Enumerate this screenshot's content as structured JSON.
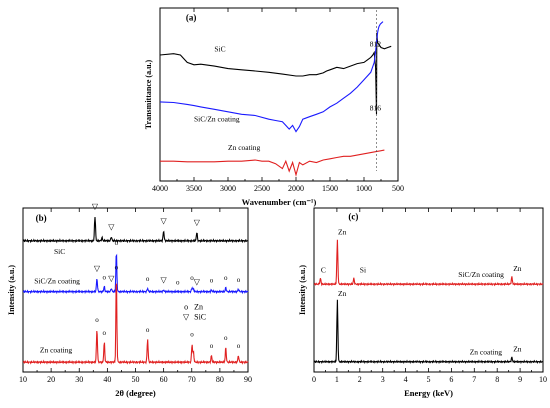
{
  "chart_data": [
    {
      "type": "line",
      "panel": "(a)",
      "xlabel": "Wavenumber (cm⁻¹)",
      "ylabel": "Transmittance (a.u.)",
      "xlim": [
        4000,
        500
      ],
      "x_reversed": true,
      "ticks": [
        4000,
        3500,
        3000,
        2500,
        2000,
        1500,
        1000,
        500
      ],
      "grid": false,
      "series": [
        {
          "name": "SiC",
          "color": "#000000",
          "points": [
            [
              4000,
              0.72
            ],
            [
              3800,
              0.73
            ],
            [
              3700,
              0.72
            ],
            [
              3600,
              0.66
            ],
            [
              3500,
              0.64
            ],
            [
              3400,
              0.645
            ],
            [
              3200,
              0.63
            ],
            [
              3000,
              0.61
            ],
            [
              2800,
              0.6
            ],
            [
              2600,
              0.59
            ],
            [
              2400,
              0.58
            ],
            [
              2200,
              0.565
            ],
            [
              2000,
              0.55
            ],
            [
              1900,
              0.55
            ],
            [
              1800,
              0.56
            ],
            [
              1700,
              0.56
            ],
            [
              1600,
              0.575
            ],
            [
              1550,
              0.59
            ],
            [
              1500,
              0.6
            ],
            [
              1400,
              0.62
            ],
            [
              1300,
              0.61
            ],
            [
              1200,
              0.63
            ],
            [
              1100,
              0.65
            ],
            [
              1000,
              0.66
            ],
            [
              950,
              0.68
            ],
            [
              900,
              0.7
            ],
            [
              870,
              0.72
            ],
            [
              850,
              0.74
            ],
            [
              830,
              0.62
            ],
            [
              816,
              0.24
            ],
            [
              812,
              0.9
            ],
            [
              800,
              0.82
            ],
            [
              750,
              0.78
            ],
            [
              700,
              0.77
            ],
            [
              650,
              0.78
            ],
            [
              600,
              0.79
            ]
          ]
        },
        {
          "name": "SiC/Zn coating",
          "color": "#1a1aff",
          "points": [
            [
              4000,
              0.34
            ],
            [
              3800,
              0.335
            ],
            [
              3600,
              0.32
            ],
            [
              3500,
              0.31
            ],
            [
              3400,
              0.3
            ],
            [
              3200,
              0.28
            ],
            [
              3000,
              0.26
            ],
            [
              2800,
              0.24
            ],
            [
              2600,
              0.23
            ],
            [
              2400,
              0.2
            ],
            [
              2300,
              0.19
            ],
            [
              2200,
              0.18
            ],
            [
              2150,
              0.15
            ],
            [
              2100,
              0.12
            ],
            [
              2050,
              0.15
            ],
            [
              2000,
              0.1
            ],
            [
              1950,
              0.14
            ],
            [
              1900,
              0.2
            ],
            [
              1800,
              0.22
            ],
            [
              1700,
              0.24
            ],
            [
              1600,
              0.26
            ],
            [
              1500,
              0.3
            ],
            [
              1400,
              0.33
            ],
            [
              1300,
              0.37
            ],
            [
              1200,
              0.41
            ],
            [
              1100,
              0.46
            ],
            [
              1000,
              0.52
            ],
            [
              900,
              0.58
            ],
            [
              850,
              0.66
            ],
            [
              830,
              0.75
            ],
            [
              816,
              0.82
            ],
            [
              800,
              0.9
            ],
            [
              790,
              0.93
            ],
            [
              780,
              0.95
            ],
            [
              760,
              0.97
            ],
            [
              740,
              0.98
            ],
            [
              720,
              0.99
            ]
          ]
        },
        {
          "name": "Zn coating",
          "color": "#e02020",
          "points": [
            [
              4000,
              -0.14
            ],
            [
              3800,
              -0.14
            ],
            [
              3600,
              -0.145
            ],
            [
              3400,
              -0.145
            ],
            [
              3200,
              -0.145
            ],
            [
              3000,
              -0.14
            ],
            [
              2800,
              -0.14
            ],
            [
              2600,
              -0.13
            ],
            [
              2500,
              -0.14
            ],
            [
              2400,
              -0.14
            ],
            [
              2300,
              -0.16
            ],
            [
              2200,
              -0.2
            ],
            [
              2150,
              -0.14
            ],
            [
              2100,
              -0.22
            ],
            [
              2050,
              -0.15
            ],
            [
              2000,
              -0.25
            ],
            [
              1950,
              -0.15
            ],
            [
              1900,
              -0.17
            ],
            [
              1800,
              -0.14
            ],
            [
              1700,
              -0.15
            ],
            [
              1600,
              -0.13
            ],
            [
              1500,
              -0.12
            ],
            [
              1400,
              -0.11
            ],
            [
              1300,
              -0.1
            ],
            [
              1200,
              -0.1
            ],
            [
              1100,
              -0.09
            ],
            [
              1000,
              -0.08
            ],
            [
              900,
              -0.07
            ],
            [
              800,
              -0.06
            ],
            [
              700,
              -0.05
            ]
          ]
        }
      ],
      "annotations": [
        {
          "text": "(a)",
          "x": 3620,
          "y": 1.0
        },
        {
          "text": "SiC",
          "x": 3200,
          "y": 0.75
        },
        {
          "text": "SiC/Zn coating",
          "x": 3500,
          "y": 0.18
        },
        {
          "text": "Zn coating",
          "x": 3000,
          "y": -0.05
        },
        {
          "text": "812",
          "x": 915,
          "y": 0.79
        },
        {
          "text": "816",
          "x": 915,
          "y": 0.27
        }
      ]
    },
    {
      "type": "line",
      "panel": "(b)",
      "xlabel": "2θ (degree)",
      "ylabel": "Intensity (a.u.)",
      "xlim": [
        10,
        90
      ],
      "ticks": [
        10,
        20,
        30,
        40,
        50,
        60,
        70,
        80,
        90
      ],
      "grid": false,
      "series": [
        {
          "name": "SiC",
          "color": "#000000",
          "baseline": 0.78,
          "peaks": [
            [
              35.6,
              0.15
            ],
            [
              38.1,
              0.02
            ],
            [
              41.4,
              0.025
            ],
            [
              60.0,
              0.06
            ],
            [
              71.8,
              0.05
            ]
          ]
        },
        {
          "name": "SiC/Zn coating",
          "color": "#1a1aff",
          "baseline": 0.47,
          "peaks": [
            [
              36.3,
              0.08
            ],
            [
              38.9,
              0.03
            ],
            [
              41.4,
              0.02
            ],
            [
              43.2,
              0.24
            ],
            [
              54.3,
              0.02
            ],
            [
              60.0,
              0.01
            ],
            [
              70.1,
              0.025
            ],
            [
              70.6,
              0.015
            ],
            [
              77.0,
              0.01
            ],
            [
              82.1,
              0.025
            ],
            [
              86.6,
              0.015
            ]
          ]
        },
        {
          "name": "Zn coating",
          "color": "#e02020",
          "baseline": 0.04,
          "peaks": [
            [
              36.3,
              0.2
            ],
            [
              38.9,
              0.12
            ],
            [
              43.2,
              0.52
            ],
            [
              54.3,
              0.14
            ],
            [
              70.1,
              0.11
            ],
            [
              70.6,
              0.06
            ],
            [
              77.0,
              0.04
            ],
            [
              82.1,
              0.09
            ],
            [
              86.6,
              0.04
            ]
          ]
        }
      ],
      "peak_markers": [
        {
          "symbol": "▽",
          "series": "SiC",
          "x": [
            35.6,
            41.4,
            60.0,
            71.8
          ]
        },
        {
          "symbol": "▽",
          "series": "SiC/Zn coating",
          "x": [
            36.3,
            41.4,
            60.0,
            71.8
          ]
        },
        {
          "symbol": "o",
          "series": "SiC/Zn coating",
          "x": [
            38.9,
            43.2,
            54.3,
            65.0,
            70.1,
            77.0,
            82.1,
            86.6
          ]
        },
        {
          "symbol": "o",
          "series": "Zn coating",
          "x": [
            36.3,
            38.9,
            43.2,
            54.3,
            70.1,
            77.0,
            82.1,
            86.6
          ]
        }
      ],
      "legend": [
        {
          "symbol": "o",
          "label": "Zn"
        },
        {
          "symbol": "▽",
          "label": "SiC"
        }
      ],
      "legend_position": "right-middle",
      "annotations": [
        {
          "text": "(b)",
          "x": 14.5,
          "y": 0.9
        },
        {
          "text": "SiC",
          "x": 21,
          "y": 0.7
        },
        {
          "text": "SiC/Zn coating",
          "x": 14,
          "y": 0.52
        },
        {
          "text": "Zn coating",
          "x": 16,
          "y": 0.1
        }
      ]
    },
    {
      "type": "line",
      "panel": "(c)",
      "xlabel": "Energy (keV)",
      "ylabel": "Intensity (a.u.)",
      "xlim": [
        0,
        10
      ],
      "ticks": [
        0,
        1,
        2,
        3,
        4,
        5,
        6,
        7,
        8,
        9,
        10
      ],
      "grid": false,
      "series": [
        {
          "name": "SiC/Zn coating",
          "color": "#e02020",
          "baseline": 0.58,
          "peaks": [
            [
              0.28,
              0.04
            ],
            [
              1.02,
              0.3
            ],
            [
              1.74,
              0.04
            ],
            [
              8.64,
              0.05
            ]
          ]
        },
        {
          "name": "Zn coating",
          "color": "#000000",
          "baseline": 0.05,
          "peaks": [
            [
              1.02,
              0.42
            ],
            [
              8.64,
              0.03
            ]
          ]
        }
      ],
      "annotations": [
        {
          "text": "(c)",
          "x": 1.5,
          "y": 1.02
        },
        {
          "text": "Zn",
          "x": 1.05,
          "y": 0.92
        },
        {
          "text": "C",
          "x": 0.3,
          "y": 0.66
        },
        {
          "text": "Si",
          "x": 2.0,
          "y": 0.66
        },
        {
          "text": "SiC/Zn coating",
          "x": 6.3,
          "y": 0.63
        },
        {
          "text": "Zn",
          "x": 8.7,
          "y": 0.67
        },
        {
          "text": "Zn",
          "x": 1.05,
          "y": 0.5
        },
        {
          "text": "Zn coating",
          "x": 6.8,
          "y": 0.1
        },
        {
          "text": "Zn",
          "x": 8.7,
          "y": 0.12
        }
      ]
    }
  ]
}
